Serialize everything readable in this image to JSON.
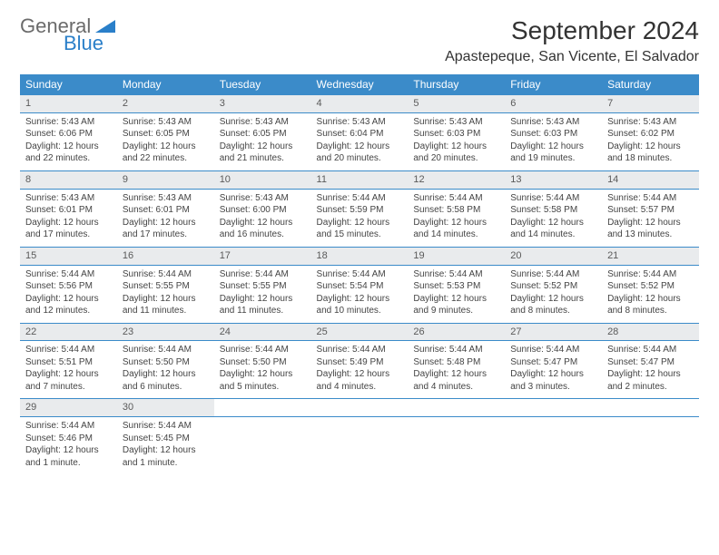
{
  "brand": {
    "general": "General",
    "blue": "Blue"
  },
  "title": "September 2024",
  "location": "Apastepeque, San Vicente, El Salvador",
  "colors": {
    "header_bg": "#3b8bc9",
    "daynum_bg": "#e9ebed",
    "rule": "#3b8bc9"
  },
  "weekdays": [
    "Sunday",
    "Monday",
    "Tuesday",
    "Wednesday",
    "Thursday",
    "Friday",
    "Saturday"
  ],
  "weeks": [
    [
      {
        "n": "1",
        "sr": "Sunrise: 5:43 AM",
        "ss": "Sunset: 6:06 PM",
        "d1": "Daylight: 12 hours",
        "d2": "and 22 minutes."
      },
      {
        "n": "2",
        "sr": "Sunrise: 5:43 AM",
        "ss": "Sunset: 6:05 PM",
        "d1": "Daylight: 12 hours",
        "d2": "and 22 minutes."
      },
      {
        "n": "3",
        "sr": "Sunrise: 5:43 AM",
        "ss": "Sunset: 6:05 PM",
        "d1": "Daylight: 12 hours",
        "d2": "and 21 minutes."
      },
      {
        "n": "4",
        "sr": "Sunrise: 5:43 AM",
        "ss": "Sunset: 6:04 PM",
        "d1": "Daylight: 12 hours",
        "d2": "and 20 minutes."
      },
      {
        "n": "5",
        "sr": "Sunrise: 5:43 AM",
        "ss": "Sunset: 6:03 PM",
        "d1": "Daylight: 12 hours",
        "d2": "and 20 minutes."
      },
      {
        "n": "6",
        "sr": "Sunrise: 5:43 AM",
        "ss": "Sunset: 6:03 PM",
        "d1": "Daylight: 12 hours",
        "d2": "and 19 minutes."
      },
      {
        "n": "7",
        "sr": "Sunrise: 5:43 AM",
        "ss": "Sunset: 6:02 PM",
        "d1": "Daylight: 12 hours",
        "d2": "and 18 minutes."
      }
    ],
    [
      {
        "n": "8",
        "sr": "Sunrise: 5:43 AM",
        "ss": "Sunset: 6:01 PM",
        "d1": "Daylight: 12 hours",
        "d2": "and 17 minutes."
      },
      {
        "n": "9",
        "sr": "Sunrise: 5:43 AM",
        "ss": "Sunset: 6:01 PM",
        "d1": "Daylight: 12 hours",
        "d2": "and 17 minutes."
      },
      {
        "n": "10",
        "sr": "Sunrise: 5:43 AM",
        "ss": "Sunset: 6:00 PM",
        "d1": "Daylight: 12 hours",
        "d2": "and 16 minutes."
      },
      {
        "n": "11",
        "sr": "Sunrise: 5:44 AM",
        "ss": "Sunset: 5:59 PM",
        "d1": "Daylight: 12 hours",
        "d2": "and 15 minutes."
      },
      {
        "n": "12",
        "sr": "Sunrise: 5:44 AM",
        "ss": "Sunset: 5:58 PM",
        "d1": "Daylight: 12 hours",
        "d2": "and 14 minutes."
      },
      {
        "n": "13",
        "sr": "Sunrise: 5:44 AM",
        "ss": "Sunset: 5:58 PM",
        "d1": "Daylight: 12 hours",
        "d2": "and 14 minutes."
      },
      {
        "n": "14",
        "sr": "Sunrise: 5:44 AM",
        "ss": "Sunset: 5:57 PM",
        "d1": "Daylight: 12 hours",
        "d2": "and 13 minutes."
      }
    ],
    [
      {
        "n": "15",
        "sr": "Sunrise: 5:44 AM",
        "ss": "Sunset: 5:56 PM",
        "d1": "Daylight: 12 hours",
        "d2": "and 12 minutes."
      },
      {
        "n": "16",
        "sr": "Sunrise: 5:44 AM",
        "ss": "Sunset: 5:55 PM",
        "d1": "Daylight: 12 hours",
        "d2": "and 11 minutes."
      },
      {
        "n": "17",
        "sr": "Sunrise: 5:44 AM",
        "ss": "Sunset: 5:55 PM",
        "d1": "Daylight: 12 hours",
        "d2": "and 11 minutes."
      },
      {
        "n": "18",
        "sr": "Sunrise: 5:44 AM",
        "ss": "Sunset: 5:54 PM",
        "d1": "Daylight: 12 hours",
        "d2": "and 10 minutes."
      },
      {
        "n": "19",
        "sr": "Sunrise: 5:44 AM",
        "ss": "Sunset: 5:53 PM",
        "d1": "Daylight: 12 hours",
        "d2": "and 9 minutes."
      },
      {
        "n": "20",
        "sr": "Sunrise: 5:44 AM",
        "ss": "Sunset: 5:52 PM",
        "d1": "Daylight: 12 hours",
        "d2": "and 8 minutes."
      },
      {
        "n": "21",
        "sr": "Sunrise: 5:44 AM",
        "ss": "Sunset: 5:52 PM",
        "d1": "Daylight: 12 hours",
        "d2": "and 8 minutes."
      }
    ],
    [
      {
        "n": "22",
        "sr": "Sunrise: 5:44 AM",
        "ss": "Sunset: 5:51 PM",
        "d1": "Daylight: 12 hours",
        "d2": "and 7 minutes."
      },
      {
        "n": "23",
        "sr": "Sunrise: 5:44 AM",
        "ss": "Sunset: 5:50 PM",
        "d1": "Daylight: 12 hours",
        "d2": "and 6 minutes."
      },
      {
        "n": "24",
        "sr": "Sunrise: 5:44 AM",
        "ss": "Sunset: 5:50 PM",
        "d1": "Daylight: 12 hours",
        "d2": "and 5 minutes."
      },
      {
        "n": "25",
        "sr": "Sunrise: 5:44 AM",
        "ss": "Sunset: 5:49 PM",
        "d1": "Daylight: 12 hours",
        "d2": "and 4 minutes."
      },
      {
        "n": "26",
        "sr": "Sunrise: 5:44 AM",
        "ss": "Sunset: 5:48 PM",
        "d1": "Daylight: 12 hours",
        "d2": "and 4 minutes."
      },
      {
        "n": "27",
        "sr": "Sunrise: 5:44 AM",
        "ss": "Sunset: 5:47 PM",
        "d1": "Daylight: 12 hours",
        "d2": "and 3 minutes."
      },
      {
        "n": "28",
        "sr": "Sunrise: 5:44 AM",
        "ss": "Sunset: 5:47 PM",
        "d1": "Daylight: 12 hours",
        "d2": "and 2 minutes."
      }
    ],
    [
      {
        "n": "29",
        "sr": "Sunrise: 5:44 AM",
        "ss": "Sunset: 5:46 PM",
        "d1": "Daylight: 12 hours",
        "d2": "and 1 minute."
      },
      {
        "n": "30",
        "sr": "Sunrise: 5:44 AM",
        "ss": "Sunset: 5:45 PM",
        "d1": "Daylight: 12 hours",
        "d2": "and 1 minute."
      },
      null,
      null,
      null,
      null,
      null
    ]
  ]
}
